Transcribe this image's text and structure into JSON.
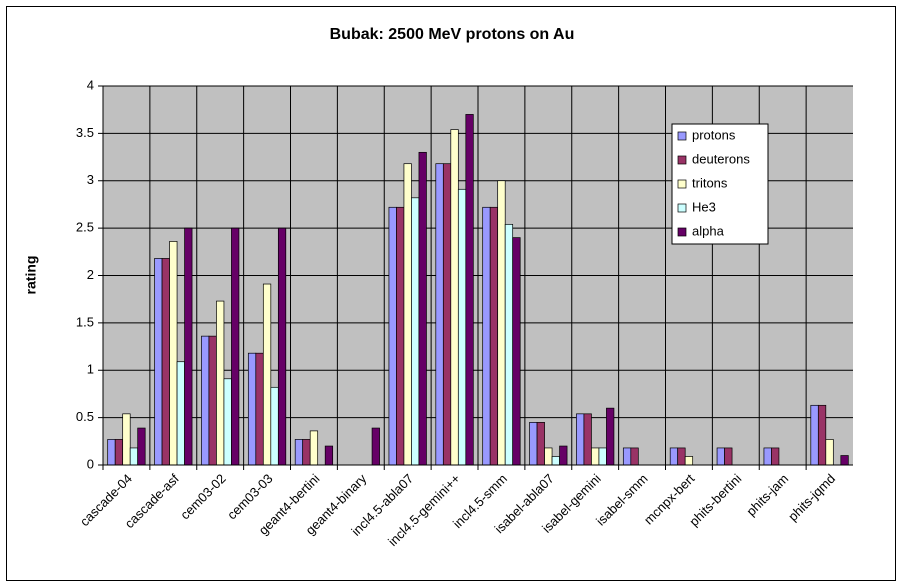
{
  "chart_data": {
    "type": "bar",
    "title": "Bubak: 2500 MeV protons on Au",
    "y_label": "rating",
    "categories": [
      "cascade-04",
      "cascade-asf",
      "cem03-02",
      "cem03-03",
      "geant4-bertini",
      "geant4-binary",
      "incl4.5-abla07",
      "incl4.5-gemini++",
      "incl4.5-smm",
      "isabel-abla07",
      "isabel-gemini",
      "isabel-smm",
      "mcnpx-bert",
      "phits-bertini",
      "phits-jam",
      "phits-jqmd"
    ],
    "series": [
      {
        "name": "protons",
        "color": "#9999ff",
        "values": [
          0.27,
          2.18,
          1.36,
          1.18,
          0.27,
          0,
          2.72,
          3.18,
          2.72,
          0.45,
          0.54,
          0.18,
          0.18,
          0.18,
          0.18,
          0.63
        ]
      },
      {
        "name": "deuterons",
        "color": "#993366",
        "values": [
          0.27,
          2.18,
          1.36,
          1.18,
          0.27,
          0,
          2.72,
          3.18,
          2.72,
          0.45,
          0.54,
          0.18,
          0.18,
          0.18,
          0.18,
          0.63
        ]
      },
      {
        "name": "tritons",
        "color": "#ffffcc",
        "values": [
          0.54,
          2.36,
          1.73,
          1.91,
          0.36,
          0,
          3.18,
          3.54,
          3.0,
          0.18,
          0.18,
          0,
          0.09,
          0,
          0,
          0.27
        ]
      },
      {
        "name": "He3",
        "color": "#ccffff",
        "values": [
          0.18,
          1.09,
          0.91,
          0.82,
          0,
          0,
          2.82,
          2.91,
          2.54,
          0.09,
          0.18,
          0,
          0,
          0,
          0,
          0
        ]
      },
      {
        "name": "alpha",
        "color": "#660066",
        "values": [
          0.39,
          2.5,
          2.5,
          2.5,
          0.2,
          0.39,
          3.3,
          3.7,
          2.4,
          0.2,
          0.6,
          0,
          0,
          0,
          0,
          0.1
        ]
      }
    ],
    "ylim": [
      0,
      4
    ],
    "yticks": [
      0,
      0.5,
      1,
      1.5,
      2,
      2.5,
      3,
      3.5,
      4
    ],
    "grid": true,
    "legend": "right"
  }
}
